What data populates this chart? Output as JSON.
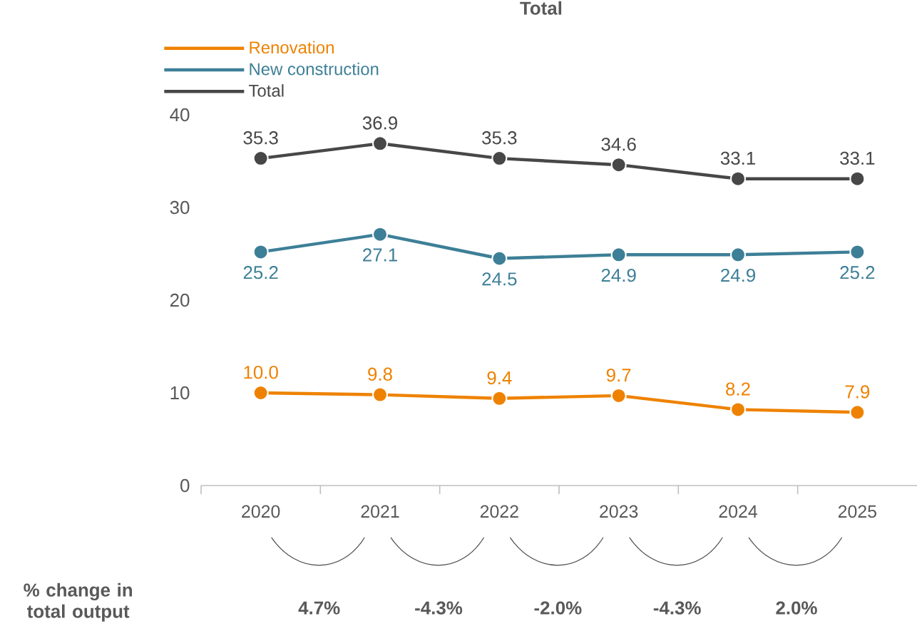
{
  "chart_data": {
    "type": "line",
    "title": "Total",
    "categories": [
      "2020",
      "2021",
      "2022",
      "2023",
      "2024",
      "2025"
    ],
    "series": [
      {
        "name": "Renovation",
        "color": "#ee8200",
        "values": [
          10.0,
          9.8,
          9.4,
          9.7,
          8.2,
          7.9
        ],
        "value_labels": [
          "10.0",
          "9.8",
          "9.4",
          "9.7",
          "8.2",
          "7.9"
        ]
      },
      {
        "name": "New construction",
        "color": "#3d7f97",
        "values": [
          25.2,
          27.1,
          24.5,
          24.9,
          24.9,
          25.2
        ],
        "value_labels": [
          "25.2",
          "27.1",
          "24.5",
          "24.9",
          "24.9",
          "25.2"
        ]
      },
      {
        "name": "Total",
        "color": "#474747",
        "values": [
          35.3,
          36.9,
          35.3,
          34.6,
          33.1,
          33.1
        ],
        "value_labels": [
          "35.3",
          "36.9",
          "35.3",
          "34.6",
          "33.1",
          "33.1"
        ]
      }
    ],
    "ylim": [
      0,
      40
    ],
    "yticks": [
      0,
      10,
      20,
      30,
      40
    ],
    "legend": "top left",
    "marker": "circle",
    "line_style": "solid",
    "annotations": [
      "% change in total output",
      "4.7%",
      "-4.3%",
      "-2.0%",
      "-4.3%",
      "2.0%"
    ]
  }
}
